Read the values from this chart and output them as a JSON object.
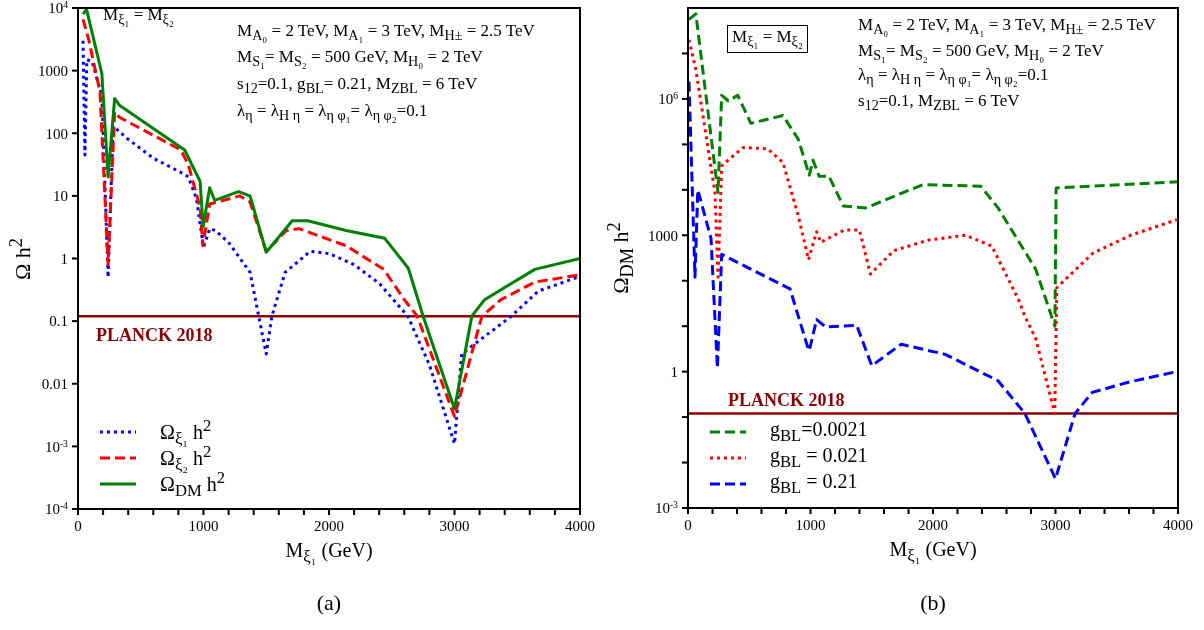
{
  "chart_data": [
    {
      "type": "line",
      "xlabel": "M$_{ξ₁}$ (GeV)",
      "ylabel": "Ω h$^{2}$",
      "log": "y",
      "legend": "bottom left",
      "xlim": [
        0,
        4000
      ],
      "xticks": [
        0,
        {
          "value": 200,
          "label": null
        },
        {
          "value": 400,
          "label": null
        },
        {
          "value": 600,
          "label": null
        },
        {
          "value": 800,
          "label": null
        },
        1000,
        {
          "value": 1200,
          "label": null
        },
        {
          "value": 1400,
          "label": null
        },
        {
          "value": 1600,
          "label": null
        },
        {
          "value": 1800,
          "label": null
        },
        2000,
        {
          "value": 2200,
          "label": null
        },
        {
          "value": 2400,
          "label": null
        },
        {
          "value": 2600,
          "label": null
        },
        {
          "value": 2800,
          "label": null
        },
        3000,
        {
          "value": 3200,
          "label": null
        },
        {
          "value": 3400,
          "label": null
        },
        {
          "value": 3600,
          "label": null
        },
        {
          "value": 3800,
          "label": null
        },
        4000
      ],
      "ylim": [
        0.0001,
        10000
      ],
      "yticks": [
        {
          "value": 0.0001,
          "label": "10$^{-4}$"
        },
        {
          "value": 0.001,
          "label": "10$^{-3}$"
        },
        0.01,
        0.1,
        1,
        10,
        100,
        1000,
        {
          "value": 10000,
          "label": "10$^{4}$"
        }
      ],
      "ref_lines": [
        {
          "axis": "y",
          "value": 0.12,
          "label": "PLANCK 2018",
          "color": "#8b0000"
        }
      ],
      "annotations": [
        "M$_{ξ₁}$ = M$_{ξ₂}$",
        "M$_{A₀}$ = 2 TeV, M$_{A₁}$ = 3 TeV, M$_{H±}$ = 2.5 TeV",
        "M$_{S₁}$= M$_{S₂}$ = 500 GeV, M$_{H₀}$ = 2 TeV",
        "s$_{12}$=0.1, g$_{BL}$= 0.21, M$_{ZBL}$ = 6 TeV",
        "λ$_{η}$ = λ$_{H η}$ = λ$_{η φ₁}$= λ$_{η φ₂}$=0.1",
        "(a)"
      ],
      "series": [
        {
          "name": "Ω$_{ξ₁}$ h$^{2}$",
          "color": "#0000ff",
          "line_style": "dotted",
          "x": [
            40,
            55,
            70,
            112,
            190,
            240,
            280,
            400,
            600,
            850,
            880,
            944,
            1000,
            1050,
            1094,
            1200,
            1371,
            1440,
            1500,
            1545,
            1650,
            1850,
            2000,
            2200,
            2400,
            2628,
            2800,
            3000,
            3057,
            3453,
            3666,
            3976
          ],
          "values": [
            3000,
            45,
            1500,
            1400,
            400,
            0.5,
            130,
            80,
            40,
            22,
            20,
            9,
            1.5,
            3,
            2.8,
            1.8,
            0.6,
            0.12,
            0.03,
            0.12,
            0.6,
            1.3,
            1.2,
            0.8,
            0.4,
            0.12,
            0.02,
            0.0011,
            0.03,
            0.12,
            0.3,
            0.5
          ]
        },
        {
          "name": "Ω$_{ξ₂}$ h$^{2}$",
          "color": "#ff0000",
          "line_style": "dashed",
          "x": [
            40,
            84,
            175,
            240,
            292,
            330,
            820,
            880,
            973,
            995,
            1049,
            1288,
            1371,
            1500,
            1660,
            1760,
            2136,
            2436,
            2600,
            2703,
            3000,
            3218,
            3370,
            3640,
            4000
          ],
          "values": [
            6600,
            3200,
            460,
            0.8,
            220,
            180,
            54,
            31,
            6.5,
            1.6,
            7.4,
            10,
            8,
            1.3,
            2.8,
            3,
            1.6,
            0.67,
            0.22,
            0.12,
            0.003,
            0.12,
            0.22,
            0.42,
            0.55
          ]
        },
        {
          "name": "Ω$_{DM}$ h$^{2}$",
          "color": "#008000",
          "line_style": "solid",
          "x": [
            40,
            68,
            190,
            240,
            292,
            330,
            850,
            973,
            997,
            1049,
            1089,
            1279,
            1371,
            1500,
            1707,
            1830,
            2136,
            2444,
            2632,
            2750,
            3000,
            3138,
            3240,
            3640,
            4000
          ],
          "values": [
            8000,
            9500,
            900,
            20,
            360,
            280,
            54,
            17,
            3.2,
            13.5,
            8.5,
            11.7,
            10,
            1.26,
            4,
            4,
            2.8,
            2.1,
            0.7,
            0.12,
            0.004,
            0.12,
            0.22,
            0.67,
            1.0
          ]
        }
      ]
    },
    {
      "type": "line",
      "xlabel": "M$_{ξ₁}$ (GeV)",
      "ylabel": "Ω$_{DM}$ h$^{2}$",
      "log": "y",
      "legend": "bottom left",
      "xlim": [
        0,
        4000
      ],
      "xticks": [
        0,
        {
          "value": 200,
          "label": null
        },
        {
          "value": 400,
          "label": null
        },
        {
          "value": 600,
          "label": null
        },
        {
          "value": 800,
          "label": null
        },
        1000,
        {
          "value": 1200,
          "label": null
        },
        {
          "value": 1400,
          "label": null
        },
        {
          "value": 1600,
          "label": null
        },
        {
          "value": 1800,
          "label": null
        },
        2000,
        {
          "value": 2200,
          "label": null
        },
        {
          "value": 2400,
          "label": null
        },
        {
          "value": 2600,
          "label": null
        },
        {
          "value": 2800,
          "label": null
        },
        3000,
        {
          "value": 3200,
          "label": null
        },
        {
          "value": 3400,
          "label": null
        },
        {
          "value": 3600,
          "label": null
        },
        {
          "value": 3800,
          "label": null
        },
        4000
      ],
      "ylim": [
        0.001,
        100000000
      ],
      "yticks": [
        {
          "value": 0.001,
          "label": "10$^{-3}$"
        },
        {
          "value": 0.01,
          "label": null
        },
        {
          "value": 0.1,
          "label": null
        },
        1,
        {
          "value": 10,
          "label": null
        },
        {
          "value": 100,
          "label": null
        },
        1000,
        {
          "value": 10000,
          "label": null
        },
        {
          "value": 100000,
          "label": null
        },
        {
          "value": 1000000,
          "label": "10$^{6}$"
        },
        {
          "value": 10000000,
          "label": null
        }
      ],
      "ref_lines": [
        {
          "axis": "y",
          "value": 0.12,
          "label": "PLANCK 2018",
          "color": "#8b0000"
        }
      ],
      "annotations": [
        "M$_{ξ₁}$ = M$_{ξ₂}$",
        "M$_{A₀}$ = 2 TeV, M$_{A₁}$ = 3 TeV, M$_{H±}$ = 2.5 TeV",
        "M$_{S₁}$= M$_{S₂}$ = 500 GeV, M$_{H₀}$ = 2 TeV",
        "λ$_{η}$ = λ$_{H η}$ = λ$_{η φ₁}$= λ$_{η φ₂}$=0.1",
        "s$_{12}$=0.1, M$_{ZBL}$ = 6 TeV",
        "(b)"
      ],
      "series": [
        {
          "name": "g$_{BL}$=0.0021",
          "color": "#008000",
          "line_style": "dashed",
          "x": [
            8,
            64,
            245,
            275,
            330,
            406,
            513,
            775,
            900,
            990,
            1020,
            1070,
            1150,
            1267,
            1450,
            1917,
            2390,
            2531,
            2838,
            2995,
            3005,
            4000
          ],
          "values": [
            56000000,
            74000000,
            8700,
            1200000,
            900000,
            1200000,
            290000,
            430000,
            130000,
            21000,
            45000,
            20000,
            20000,
            4400,
            4000,
            13000,
            12000,
            4000,
            180,
            10,
            11000,
            15000
          ]
        },
        {
          "name": "g$_{BL}$ = 0.021",
          "color": "#ff0000",
          "line_style": "dotted",
          "x": [
            8,
            64,
            220,
            245,
            275,
            450,
            650,
            775,
            898,
            984,
            1050,
            1084,
            1274,
            1400,
            1489,
            1680,
            1960,
            2265,
            2480,
            2701,
            2748,
            2838,
            2994,
            3010,
            3303,
            3614,
            3990
          ],
          "values": [
            20000000,
            4400000,
            8700,
            120,
            34000,
            85000,
            80000,
            40000,
            2800,
            290,
            1200,
            700,
            1300,
            1300,
            140,
            460,
            780,
            1000,
            580,
            37,
            17,
            5.4,
            0.12,
            70,
            400,
            1000,
            2200
          ]
        },
        {
          "name": "g$_{BL}$ = 0.21",
          "color": "#0000ff",
          "line_style": "dashed",
          "x": [
            8,
            57,
            80,
            188,
            240,
            275,
            833,
            975,
            990,
            1050,
            1123,
            1377,
            1500,
            1740,
            2100,
            2531,
            2750,
            3000,
            3160,
            3300,
            3610,
            3990
          ],
          "values": [
            2400000,
            120,
            10000,
            850,
            1.2,
            380,
            66,
            3.6,
            2.9,
            14,
            9.6,
            10.5,
            1.35,
            4,
            2.4,
            0.63,
            0.12,
            0.0044,
            0.12,
            0.35,
            0.6,
            1
          ]
        }
      ]
    }
  ]
}
